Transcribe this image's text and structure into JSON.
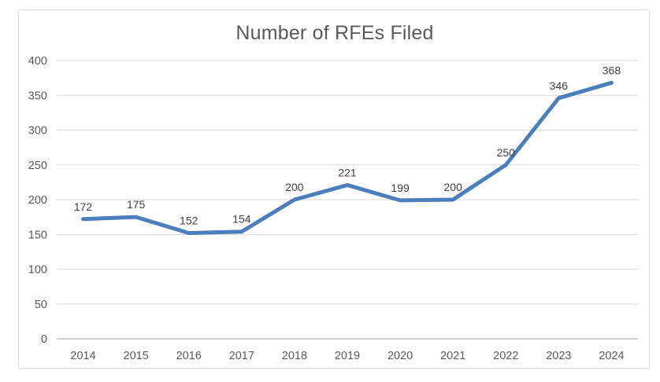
{
  "chart_data": {
    "type": "line",
    "title": "Number of RFEs Filed",
    "categories": [
      "2014",
      "2015",
      "2016",
      "2017",
      "2018",
      "2019",
      "2020",
      "2021",
      "2022",
      "2023",
      "2024"
    ],
    "series": [
      {
        "name": "Number of RFEs Filed",
        "values": [
          172,
          175,
          152,
          154,
          200,
          221,
          199,
          200,
          250,
          346,
          368
        ]
      }
    ],
    "xlabel": "",
    "ylabel": "",
    "ylim": [
      0,
      400
    ],
    "ytick_step": 50,
    "grid": true,
    "legend": "none",
    "data_labels": true,
    "colors": {
      "line": "#4a7ebd",
      "gridline": "#d9d9d9",
      "axis_line": "#bfbfbf",
      "tick_label": "#595959",
      "data_label": "#404040",
      "title": "#595959",
      "frame_border": "#d9d9d9"
    }
  }
}
